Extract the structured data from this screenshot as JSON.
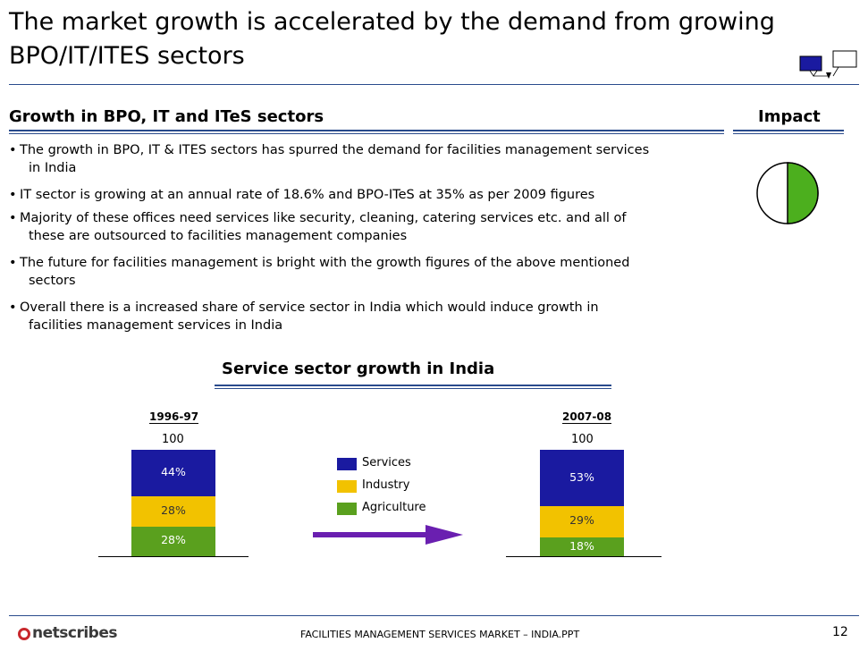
{
  "header": {
    "title_line1": "The market growth is accelerated by the demand from growing",
    "title_line2": "BPO/IT/ITES sectors"
  },
  "section": {
    "heading": "Growth in BPO, IT and ITeS sectors",
    "impact_label": "Impact",
    "impact_level": 0.5,
    "bullets": [
      {
        "line1": "The growth in BPO, IT & ITES sectors has spurred the demand for facilities management services",
        "line2": "in India"
      },
      {
        "line1": "IT sector is growing at an annual rate of 18.6% and BPO-ITeS at 35% as per 2009 figures",
        "line2": ""
      },
      {
        "line1": "Majority of these offices need services like security, cleaning, catering services etc. and all of",
        "line2": "these are outsourced to facilities management companies"
      },
      {
        "line1": "The future for facilities management is bright with the growth figures of the above mentioned",
        "line2": "sectors"
      },
      {
        "line1": "Overall there is a increased share of service sector in India which would induce growth in",
        "line2": "facilities management services in India"
      }
    ],
    "bullet_glyph": "•"
  },
  "chart_data": {
    "type": "bar",
    "title": "Service sector growth in India",
    "categories": [
      "1996-97",
      "2007-08"
    ],
    "totals": [
      "100",
      "100"
    ],
    "series": [
      {
        "name": "Services",
        "values": [
          44,
          53
        ],
        "labels": [
          "44%",
          "53%"
        ],
        "color": "#1a1aa0"
      },
      {
        "name": "Industry",
        "values": [
          28,
          29
        ],
        "labels": [
          "28%",
          "29%"
        ],
        "color": "#f2c200"
      },
      {
        "name": "Agriculture",
        "values": [
          28,
          18
        ],
        "labels": [
          "28%",
          "18%"
        ],
        "color": "#5aa01e"
      }
    ],
    "stacked": true,
    "arrow_color": "#6a1fb0"
  },
  "footer": {
    "logo_text": "netscribes",
    "document_title": "FACILITIES MANAGEMENT SERVICES MARKET – INDIA.PPT",
    "page_number": "12"
  },
  "colors": {
    "rule": "#2a4b8c",
    "impact_fill": "#4caf1e"
  }
}
